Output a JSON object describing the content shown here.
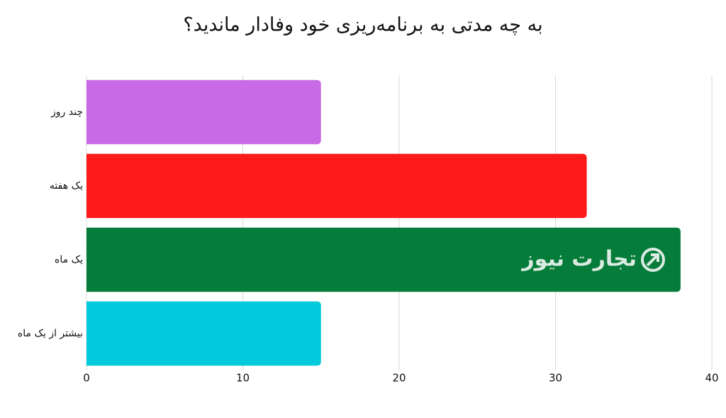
{
  "chart_data": {
    "type": "bar",
    "orientation": "horizontal",
    "title": "به چه مدتی به برنامه‌ریزی خود وفادار ماندید؟",
    "categories": [
      "چند روز",
      "یک هفته",
      "یک ماه",
      "بیشتر از یک ماه"
    ],
    "values": [
      15,
      32,
      38,
      15
    ],
    "colors": [
      "#c86ae6",
      "#fd1a1a",
      "#067c3a",
      "#00cadb"
    ],
    "xlim": [
      0,
      40
    ],
    "xticks": [
      0,
      10,
      20,
      30,
      40
    ],
    "grid": true,
    "watermark": "تجارت نیوز"
  }
}
